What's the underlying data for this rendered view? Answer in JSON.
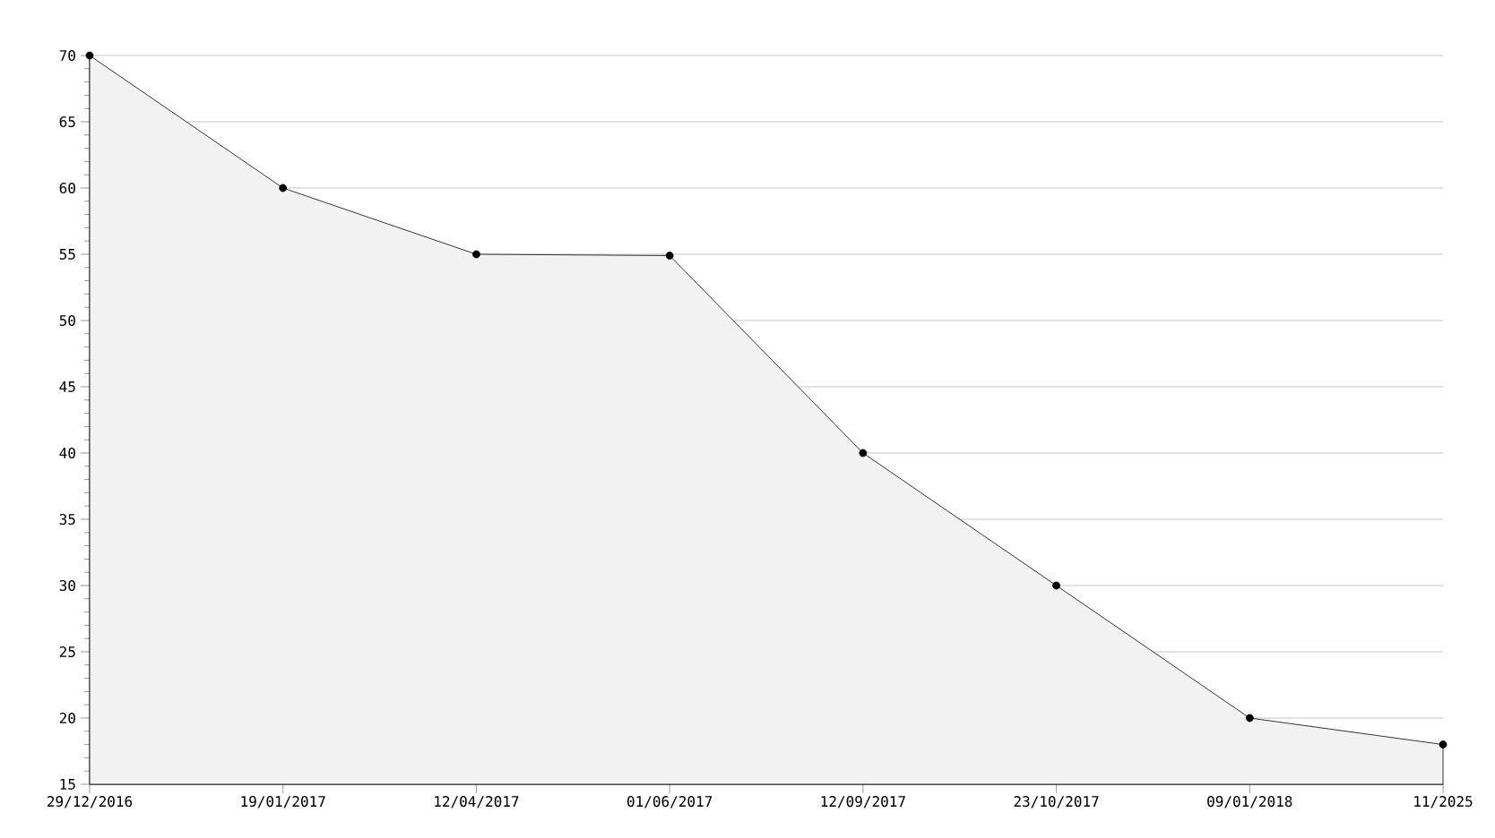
{
  "chart_data": {
    "type": "area",
    "categories": [
      "29/12/2016",
      "19/01/2017",
      "12/04/2017",
      "01/06/2017",
      "12/09/2017",
      "23/10/2017",
      "09/01/2018",
      "11/2025"
    ],
    "series": [
      {
        "color": "#f2f2f2",
        "values": [
          70,
          60,
          55,
          54.9,
          40,
          30,
          20,
          18
        ]
      }
    ],
    "ylim": [
      15,
      70
    ],
    "yticks": [
      15,
      20,
      25,
      30,
      35,
      40,
      45,
      50,
      55,
      60,
      65,
      70
    ],
    "grid": "y",
    "marker": "circle",
    "line_style": "solid"
  }
}
